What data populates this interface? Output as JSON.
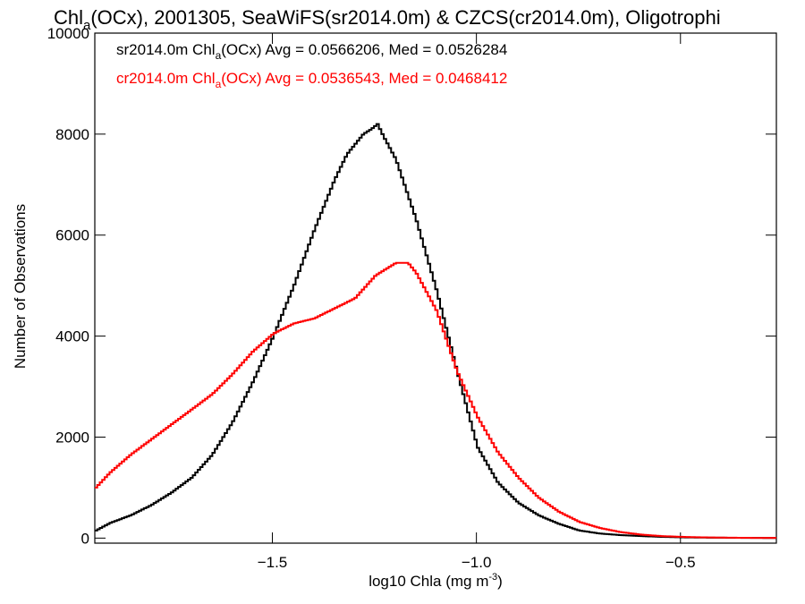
{
  "chart_data": {
    "type": "line",
    "step": true,
    "title": {
      "prefix": "Chl",
      "sub": "a",
      "suffix": "(OCx), 2001305, SeaWiFS(sr2014.0m) & CZCS(cr2014.0m), Oligotrophi"
    },
    "xlabel": {
      "prefix": "log10 Chla (mg m",
      "sup": "-3",
      "suffix": ")"
    },
    "ylabel": "Number of Observations",
    "xlim": [
      -1.935,
      -0.265
    ],
    "ylim": [
      -100,
      10000
    ],
    "x_ticks": [
      {
        "value": -1.5,
        "label": "−1.5"
      },
      {
        "value": -1.0,
        "label": "−1.0"
      },
      {
        "value": -0.5,
        "label": "−0.5"
      }
    ],
    "y_ticks": [
      {
        "value": 0,
        "label": "0"
      },
      {
        "value": 2000,
        "label": "2000"
      },
      {
        "value": 4000,
        "label": "4000"
      },
      {
        "value": 6000,
        "label": "6000"
      },
      {
        "value": 8000,
        "label": "8000"
      },
      {
        "value": 10000,
        "label": "10000"
      }
    ],
    "grid": false,
    "legend_position": "top-left",
    "series": [
      {
        "name": "sr2014.0m",
        "color": "#000000",
        "legend": {
          "prefix": "sr2014.0m Chl",
          "sub": "a",
          "suffix": "(OCx) Avg = 0.0566206, Med = 0.0526284"
        },
        "x": [
          -1.935,
          -1.9,
          -1.85,
          -1.8,
          -1.75,
          -1.7,
          -1.65,
          -1.6,
          -1.55,
          -1.5,
          -1.45,
          -1.4,
          -1.35,
          -1.32,
          -1.3,
          -1.28,
          -1.26,
          -1.245,
          -1.23,
          -1.2,
          -1.15,
          -1.1,
          -1.05,
          -1.0,
          -0.95,
          -0.9,
          -0.85,
          -0.8,
          -0.75,
          -0.7,
          -0.65,
          -0.6,
          -0.55,
          -0.5,
          -0.45,
          -0.4,
          -0.35,
          -0.3,
          -0.265
        ],
        "y": [
          150,
          300,
          450,
          650,
          900,
          1200,
          1650,
          2300,
          3100,
          4000,
          5000,
          6100,
          7100,
          7600,
          7800,
          8000,
          8100,
          8200,
          7950,
          7500,
          6300,
          4900,
          3300,
          1800,
          1100,
          700,
          450,
          280,
          150,
          90,
          60,
          40,
          25,
          15,
          10,
          8,
          5,
          3,
          2
        ]
      },
      {
        "name": "cr2014.0m",
        "color": "#ff0000",
        "legend": {
          "prefix": "cr2014.0m Chl",
          "sub": "a",
          "suffix": "(OCx) Avg = 0.0536543, Med = 0.0468412"
        },
        "x": [
          -1.935,
          -1.9,
          -1.85,
          -1.8,
          -1.75,
          -1.7,
          -1.65,
          -1.6,
          -1.55,
          -1.5,
          -1.45,
          -1.4,
          -1.35,
          -1.3,
          -1.25,
          -1.2,
          -1.17,
          -1.15,
          -1.1,
          -1.05,
          -1.0,
          -0.95,
          -0.9,
          -0.85,
          -0.8,
          -0.75,
          -0.7,
          -0.65,
          -0.6,
          -0.55,
          -0.5,
          -0.45,
          -0.4,
          -0.35,
          -0.3,
          -0.265
        ],
        "y": [
          1000,
          1300,
          1650,
          1950,
          2250,
          2550,
          2850,
          3250,
          3700,
          4050,
          4250,
          4350,
          4550,
          4750,
          5200,
          5450,
          5450,
          5250,
          4500,
          3300,
          2400,
          1700,
          1200,
          800,
          520,
          320,
          200,
          120,
          70,
          40,
          25,
          15,
          10,
          6,
          4,
          3
        ]
      }
    ]
  }
}
